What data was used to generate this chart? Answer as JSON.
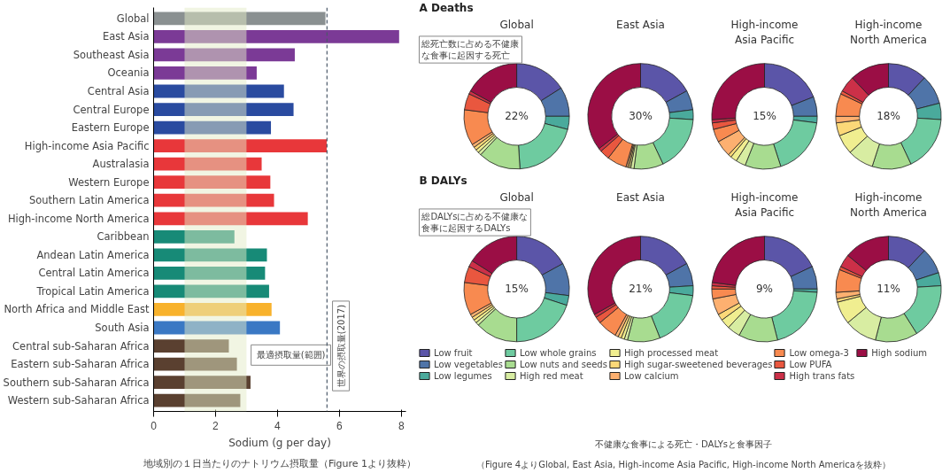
{
  "chart_data": [
    {
      "type": "bar",
      "orientation": "horizontal",
      "xlabel": "Sodium (g per day)",
      "categories": [
        "Global",
        "East Asia",
        "Southeast Asia",
        "Oceania",
        "Central Asia",
        "Central Europe",
        "Eastern Europe",
        "High-income Asia Pacific",
        "Australasia",
        "Western Europe",
        "Southern Latin America",
        "High-income North America",
        "Caribbean",
        "Andean Latin America",
        "Central Latin America",
        "Tropical Latin America",
        "North Africa and Middle East",
        "South Asia",
        "Central sub-Saharan Africa",
        "Eastern sub-Saharan Africa",
        "Southern sub-Saharan Africa",
        "Western sub-Saharan Africa"
      ],
      "values": [
        5.55,
        7.93,
        4.56,
        3.33,
        4.21,
        4.52,
        3.79,
        5.59,
        3.49,
        3.77,
        3.89,
        4.98,
        2.61,
        3.66,
        3.6,
        3.73,
        3.81,
        4.08,
        2.43,
        2.69,
        3.13,
        2.8
      ],
      "colors": [
        "#8a9091",
        "#7b3a96",
        "#7b3a96",
        "#7b3a96",
        "#2a4ba0",
        "#2a4ba0",
        "#2a4ba0",
        "#e8373a",
        "#e8373a",
        "#e8373a",
        "#e8373a",
        "#e8373a",
        "#178a77",
        "#178a77",
        "#178a77",
        "#178a77",
        "#f8b22c",
        "#3a78c4",
        "#5a4030",
        "#5a4030",
        "#5a4030",
        "#5a4030"
      ],
      "xlim": [
        0,
        8.15
      ],
      "xticks": [
        0,
        2,
        4,
        6,
        8
      ],
      "bands": [
        {
          "axis": "x",
          "from": 1,
          "to": 3,
          "label": "最適摂取量(範囲)",
          "color": "#e4ecc8"
        }
      ],
      "ref_lines": [
        {
          "axis": "x",
          "value": 5.6,
          "label": "世界の摂取量(2017)",
          "line_style": "dashed",
          "color": "#4a5868"
        }
      ],
      "annotations": [
        "地域別の１日当たりのナトリウム摂取量（Figure 1より抜粋）"
      ]
    },
    {
      "type": "donut",
      "title": "Global",
      "subtitle": "A Deaths",
      "legend": "bottom",
      "categories": [
        "Low fruit",
        "Low vegetables",
        "Low legumes",
        "Low whole grains",
        "Low nuts and seeds",
        "High red meat",
        "High processed meat",
        "High sugar-sweetened beverages",
        "Low calcium",
        "Low omega-3",
        "Low PUFA",
        "High trans fats",
        "High sodium"
      ],
      "values": [
        16,
        9,
        4,
        20,
        13,
        1,
        1,
        1,
        1,
        11,
        5,
        1,
        17
      ],
      "colors": [
        "#5b55a8",
        "#4f74a8",
        "#4aaa9c",
        "#6ecba0",
        "#a8dc90",
        "#d8eda2",
        "#f0ee90",
        "#fcd878",
        "#fdb070",
        "#f88a50",
        "#e9573f",
        "#cc3048",
        "#9b0e45"
      ],
      "annotations": [
        "22%",
        "総死亡数に占める不健康な食事に起因する死亡"
      ]
    },
    {
      "type": "donut",
      "title": "East Asia",
      "values": [
        17,
        6,
        3,
        17,
        9,
        1,
        0.5,
        0.5,
        0.5,
        6,
        3,
        1,
        35.5
      ],
      "colors": [
        "#5b55a8",
        "#4f74a8",
        "#4aaa9c",
        "#6ecba0",
        "#a8dc90",
        "#d8eda2",
        "#f0ee90",
        "#fcd878",
        "#fdb070",
        "#f88a50",
        "#e9573f",
        "#cc3048",
        "#9b0e45"
      ],
      "annotations": [
        "30%"
      ]
    },
    {
      "type": "donut",
      "title": "High-income Asia Pacific",
      "values": [
        19,
        6,
        2,
        18,
        11,
        3,
        2,
        1,
        5,
        4,
        2,
        1,
        26
      ],
      "colors": [
        "#5b55a8",
        "#4f74a8",
        "#4aaa9c",
        "#6ecba0",
        "#a8dc90",
        "#d8eda2",
        "#f0ee90",
        "#fcd878",
        "#fdb070",
        "#f88a50",
        "#e9573f",
        "#cc3048",
        "#9b0e45"
      ],
      "annotations": [
        "15%"
      ]
    },
    {
      "type": "donut",
      "title": "High-income North America",
      "values": [
        12,
        9,
        5,
        17,
        12,
        8,
        6,
        4,
        2,
        7,
        1,
        5,
        12
      ],
      "colors": [
        "#5b55a8",
        "#4f74a8",
        "#4aaa9c",
        "#6ecba0",
        "#a8dc90",
        "#d8eda2",
        "#f0ee90",
        "#fcd878",
        "#fdb070",
        "#f88a50",
        "#e9573f",
        "#cc3048",
        "#9b0e45"
      ],
      "annotations": [
        "18%"
      ]
    },
    {
      "type": "donut",
      "title": "Global",
      "subtitle": "B DALYs",
      "values": [
        17,
        10,
        3,
        20,
        13,
        1,
        1,
        1,
        1,
        10,
        5,
        2,
        16
      ],
      "colors": [
        "#5b55a8",
        "#4f74a8",
        "#4aaa9c",
        "#6ecba0",
        "#a8dc90",
        "#d8eda2",
        "#f0ee90",
        "#fcd878",
        "#fdb070",
        "#f88a50",
        "#e9573f",
        "#cc3048",
        "#9b0e45"
      ],
      "annotations": [
        "15%",
        "総DALYsに占める不健康な食事に起因するDALYs"
      ]
    },
    {
      "type": "donut",
      "title": "East Asia",
      "values": [
        17,
        7,
        3,
        17,
        10,
        1,
        1,
        1,
        1,
        6,
        2,
        1,
        33
      ],
      "colors": [
        "#5b55a8",
        "#4f74a8",
        "#4aaa9c",
        "#6ecba0",
        "#a8dc90",
        "#d8eda2",
        "#f0ee90",
        "#fcd878",
        "#fdb070",
        "#f88a50",
        "#e9573f",
        "#cc3048",
        "#9b0e45"
      ],
      "annotations": [
        "21%"
      ]
    },
    {
      "type": "donut",
      "title": "High-income Asia Pacific",
      "values": [
        18,
        7,
        1,
        20,
        12,
        4,
        3,
        2,
        5,
        3,
        1,
        1,
        23
      ],
      "colors": [
        "#5b55a8",
        "#4f74a8",
        "#4aaa9c",
        "#6ecba0",
        "#a8dc90",
        "#d8eda2",
        "#f0ee90",
        "#fcd878",
        "#fdb070",
        "#f88a50",
        "#e9573f",
        "#cc3048",
        "#9b0e45"
      ],
      "annotations": [
        "9%"
      ]
    },
    {
      "type": "donut",
      "title": "High-income North America",
      "values": [
        12,
        8,
        4,
        17,
        13,
        10,
        7,
        1,
        2,
        7,
        1,
        4,
        14
      ],
      "colors": [
        "#5b55a8",
        "#4f74a8",
        "#4aaa9c",
        "#6ecba0",
        "#a8dc90",
        "#d8eda2",
        "#f0ee90",
        "#fcd878",
        "#fdb070",
        "#f88a50",
        "#e9573f",
        "#cc3048",
        "#9b0e45"
      ],
      "annotations": [
        "11%",
        "不健康な食事による死亡・DALYsと食事因子",
        "（Figure 4よりGlobal, East Asia, High-income Asia Pacific, High-income North Americaを抜粋）"
      ]
    }
  ]
}
